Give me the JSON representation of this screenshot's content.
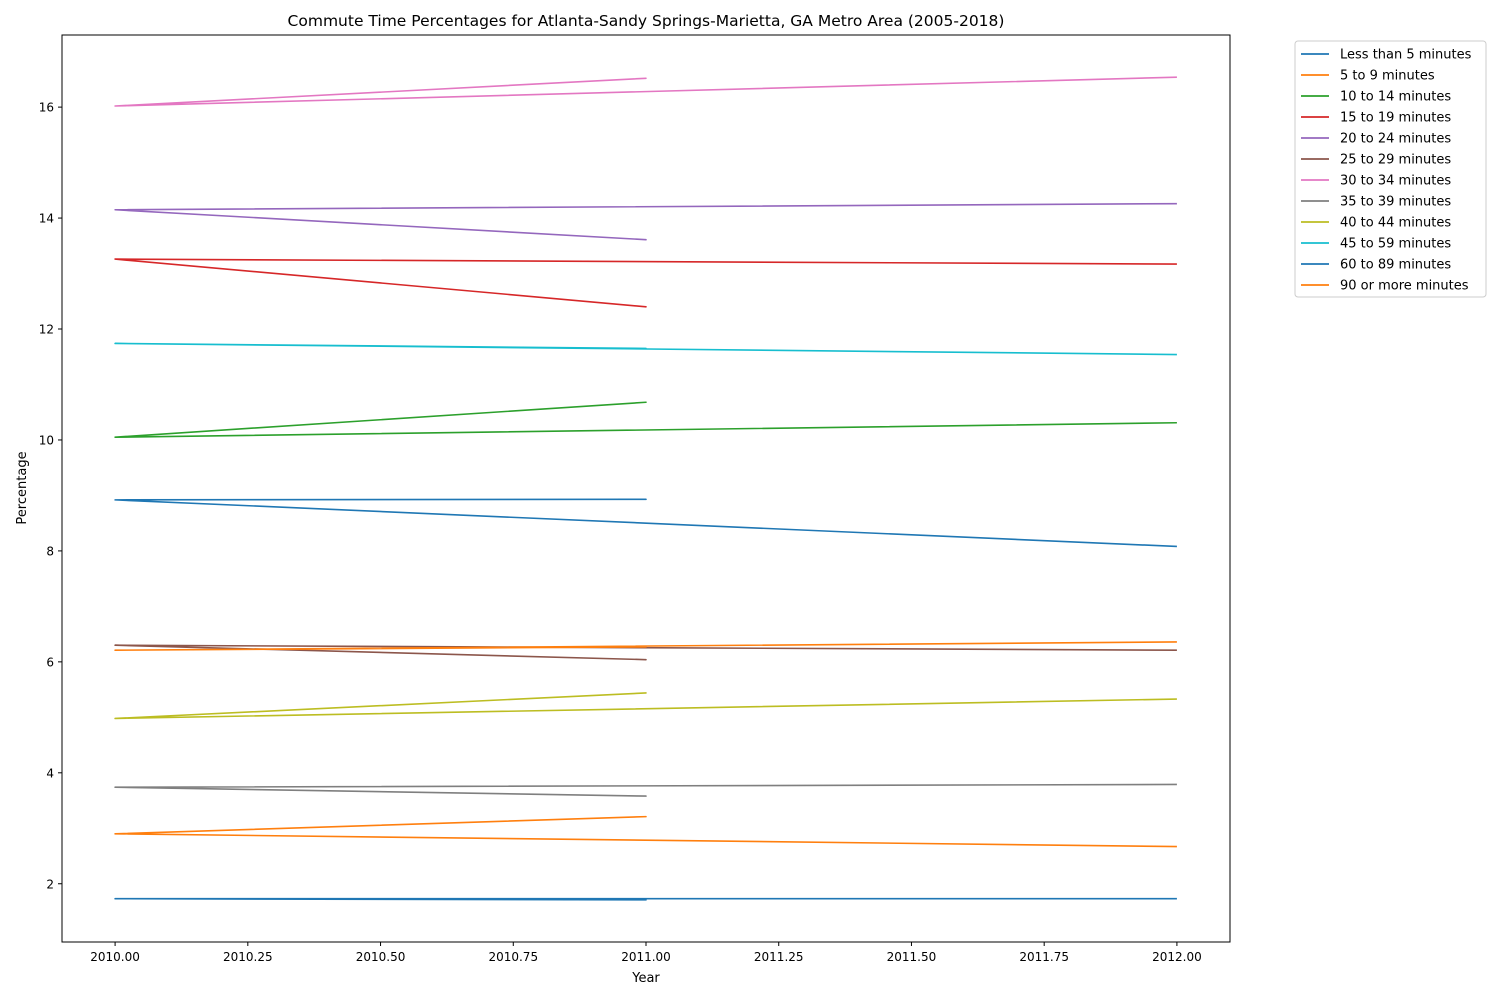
{
  "chart_data": {
    "type": "line",
    "title": "Commute Time Percentages for Atlanta-Sandy Springs-Marietta, GA Metro Area (2005-2018)",
    "xlabel": "Year",
    "ylabel": "Percentage",
    "xlim": [
      2009.9,
      2012.1
    ],
    "ylim": [
      0.95,
      17.3
    ],
    "x_ticks": [
      "2010.00",
      "2010.25",
      "2010.50",
      "2010.75",
      "2011.00",
      "2011.25",
      "2011.50",
      "2011.75",
      "2012.00"
    ],
    "x_tick_values": [
      2010.0,
      2010.25,
      2010.5,
      2010.75,
      2011.0,
      2011.25,
      2011.5,
      2011.75,
      2012.0
    ],
    "y_ticks": [
      "2",
      "4",
      "6",
      "8",
      "10",
      "12",
      "14",
      "16"
    ],
    "y_tick_values": [
      2,
      4,
      6,
      8,
      10,
      12,
      14,
      16
    ],
    "grid": false,
    "legend_position": "outside-top-right",
    "series": [
      {
        "name": "Less than 5 minutes",
        "color": "#1f77b4",
        "x": [
          2010,
          2011,
          2010,
          2012
        ],
        "y": [
          1.73,
          1.71,
          1.73,
          1.73
        ]
      },
      {
        "name": "5 to 9 minutes",
        "color": "#ff7f0e",
        "x": [
          2010,
          2011,
          2010,
          2012
        ],
        "y": [
          2.9,
          3.21,
          2.9,
          2.67
        ]
      },
      {
        "name": "10 to 14 minutes",
        "color": "#2ca02c",
        "x": [
          2010,
          2011,
          2010,
          2012
        ],
        "y": [
          10.05,
          10.68,
          10.05,
          10.31
        ]
      },
      {
        "name": "15 to 19 minutes",
        "color": "#d62728",
        "x": [
          2010,
          2011,
          2010,
          2012
        ],
        "y": [
          13.26,
          12.4,
          13.26,
          13.17
        ]
      },
      {
        "name": "20 to 24 minutes",
        "color": "#9467bd",
        "x": [
          2010,
          2011,
          2010,
          2012
        ],
        "y": [
          14.15,
          13.61,
          14.15,
          14.26
        ]
      },
      {
        "name": "25 to 29 minutes",
        "color": "#8c564b",
        "x": [
          2010,
          2011,
          2010,
          2012
        ],
        "y": [
          6.3,
          6.04,
          6.3,
          6.21
        ]
      },
      {
        "name": "30 to 34 minutes",
        "color": "#e377c2",
        "x": [
          2010,
          2011,
          2010,
          2012
        ],
        "y": [
          16.02,
          16.52,
          16.02,
          16.54
        ]
      },
      {
        "name": "35 to 39 minutes",
        "color": "#7f7f7f",
        "x": [
          2010,
          2011,
          2010,
          2012
        ],
        "y": [
          3.74,
          3.58,
          3.74,
          3.79
        ]
      },
      {
        "name": "40 to 44 minutes",
        "color": "#bcbd22",
        "x": [
          2010,
          2011,
          2010,
          2012
        ],
        "y": [
          4.98,
          5.44,
          4.98,
          5.33
        ]
      },
      {
        "name": "45 to 59 minutes",
        "color": "#17becf",
        "x": [
          2010,
          2011,
          2010,
          2012
        ],
        "y": [
          11.74,
          11.65,
          11.74,
          11.54
        ]
      },
      {
        "name": "60 to 89 minutes",
        "color": "#1f77b4",
        "x": [
          2010,
          2011,
          2010,
          2012
        ],
        "y": [
          8.92,
          8.93,
          8.92,
          8.08
        ]
      },
      {
        "name": "90 or more minutes",
        "color": "#ff7f0e",
        "x": [
          2010,
          2011,
          2010,
          2012
        ],
        "y": [
          6.21,
          6.27,
          6.21,
          6.36
        ]
      }
    ]
  }
}
